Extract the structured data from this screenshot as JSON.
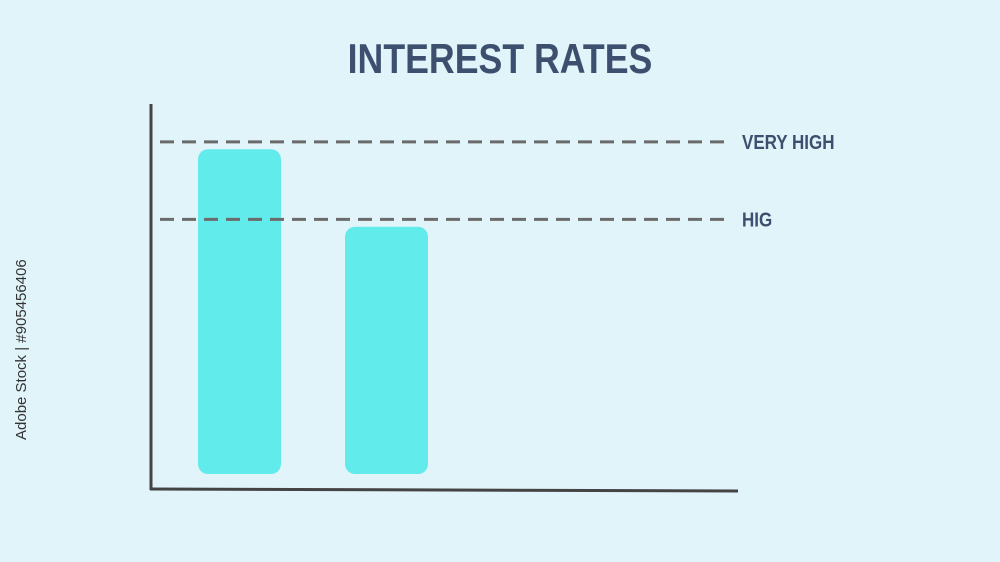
{
  "chart_data": {
    "type": "bar",
    "title": "INTEREST RATES",
    "categories": [
      null,
      null
    ],
    "values": [
      88,
      67
    ],
    "color": "#62ebeb",
    "ylim": [
      0,
      100
    ],
    "reference_lines": [
      {
        "label": "VERY HIGH",
        "value": 90
      },
      {
        "label": "HIG",
        "value": 69
      }
    ],
    "reference_color": "#6b6b6b"
  },
  "watermark": "Adobe Stock | #905456406"
}
